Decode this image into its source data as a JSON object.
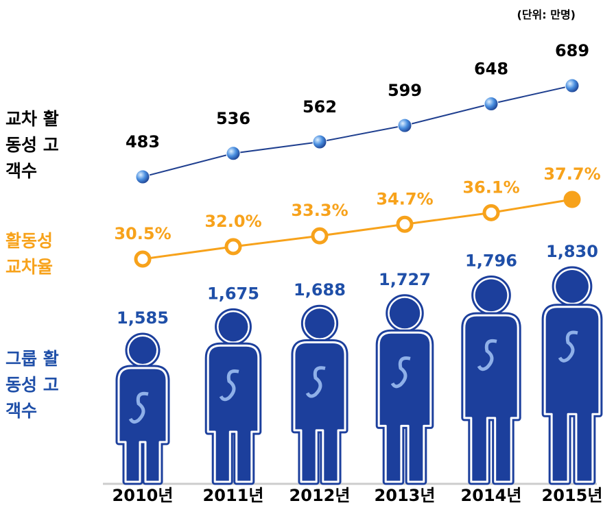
{
  "chart_data": {
    "type": "line",
    "unit_note": "(단위: 만명)",
    "categories": [
      "2010년",
      "2011년",
      "2012년",
      "2013년",
      "2014년",
      "2015년"
    ],
    "series": [
      {
        "name": "교차 활동성 고객수",
        "color": "#1f3f8f",
        "label_color": "#000000",
        "marker": "globe",
        "values": [
          483,
          536,
          562,
          599,
          648,
          689
        ]
      },
      {
        "name": "활동성 교차율",
        "color": "#f7a21b",
        "label_color": "#f7a21b",
        "marker": "ring",
        "values": [
          30.5,
          32.0,
          33.3,
          34.7,
          36.1,
          37.7
        ],
        "value_labels": [
          "30.5%",
          "32.0%",
          "33.3%",
          "34.7%",
          "36.1%",
          "37.7%"
        ]
      },
      {
        "name": "그룹 활동성 고객수",
        "color": "#1c3f9c",
        "label_color": "#1f4fa8",
        "marker": "person",
        "values": [
          1585,
          1675,
          1688,
          1727,
          1796,
          1830
        ],
        "value_labels": [
          "1,585",
          "1,675",
          "1,688",
          "1,727",
          "1,796",
          "1,830"
        ]
      }
    ]
  }
}
